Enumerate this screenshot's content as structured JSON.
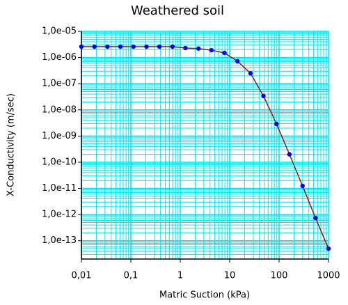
{
  "chart_data": {
    "type": "line",
    "title": "Weathered soil",
    "x_label": "Matric Suction (kPa)",
    "y_label": "X-Conductivity (m/sec)",
    "x_scale": "log",
    "y_scale": "log",
    "grid": true,
    "minor_grid": true,
    "grid_color": "#00e5f0",
    "xlim": [
      0.01,
      1000
    ],
    "ylim": [
      2e-14,
      1e-05
    ],
    "xticks": [
      {
        "value": 0.01,
        "label": "0,01"
      },
      {
        "value": 0.1,
        "label": "0,1"
      },
      1,
      10,
      100,
      1000
    ],
    "yticks": [
      {
        "value": 1e-05,
        "label": "1,0e-05"
      },
      {
        "value": 1e-06,
        "label": "1,0e-06"
      },
      {
        "value": 1e-07,
        "label": "1,0e-07"
      },
      {
        "value": 1e-08,
        "label": "1,0e-08"
      },
      {
        "value": 1e-09,
        "label": "1,0e-09"
      },
      {
        "value": 1e-10,
        "label": "1,0e-10"
      },
      {
        "value": 1e-11,
        "label": "1,0e-11"
      },
      {
        "value": 1e-12,
        "label": "1,0e-12"
      },
      {
        "value": 1e-13,
        "label": "1,0e-13"
      }
    ],
    "x": [
      0.01,
      0.0183,
      0.0336,
      0.0616,
      0.113,
      0.207,
      0.379,
      0.695,
      1.27,
      2.34,
      4.28,
      7.85,
      14.4,
      26.4,
      48.3,
      88.6,
      162,
      298,
      546,
      1000
    ],
    "series": [
      {
        "line_color": "#8b1a1a",
        "marker_color": "#0000ee",
        "values": [
          2.6e-06,
          2.6e-06,
          2.6e-06,
          2.6e-06,
          2.6e-06,
          2.6e-06,
          2.6e-06,
          2.6e-06,
          2.3e-06,
          2.2e-06,
          1.9e-06,
          1.5e-06,
          7.2e-07,
          2.5e-07,
          3.4e-08,
          2.9e-09,
          2e-10,
          1.25e-11,
          7.4e-13,
          5e-14
        ]
      }
    ]
  }
}
